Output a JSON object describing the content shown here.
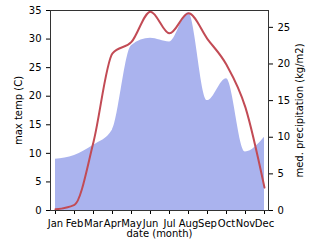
{
  "chart_data": {
    "type": "line",
    "x_label": "date (month)",
    "y_label": "max temp (C)",
    "y2_label": "med. precipitation (kg/m2)",
    "categories": [
      "Jan",
      "Feb",
      "Mar",
      "Apr",
      "May",
      "Jun",
      "Jul",
      "Aug",
      "Sep",
      "Oct",
      "Nov",
      "Dec"
    ],
    "series": [
      {
        "name": "med. precipitation",
        "type": "area",
        "axis": "y2",
        "color": "#aab3ee",
        "values": [
          7,
          7.5,
          8.9,
          11,
          22.5,
          23.5,
          23,
          27,
          15,
          18,
          8,
          10
        ]
      },
      {
        "name": "max temp",
        "type": "line",
        "color": "#c24b55",
        "values": [
          0.2,
          1,
          12,
          27.5,
          29.5,
          34.8,
          31,
          34.5,
          30,
          25.5,
          18,
          4
        ]
      }
    ],
    "ylim": [
      0,
      35
    ],
    "yticks": [
      0,
      5,
      10,
      15,
      20,
      25,
      30,
      35
    ],
    "y2lim": [
      0,
      27.3
    ],
    "y2ticks": [
      0,
      5,
      10,
      15,
      20,
      25
    ],
    "grid": false
  }
}
